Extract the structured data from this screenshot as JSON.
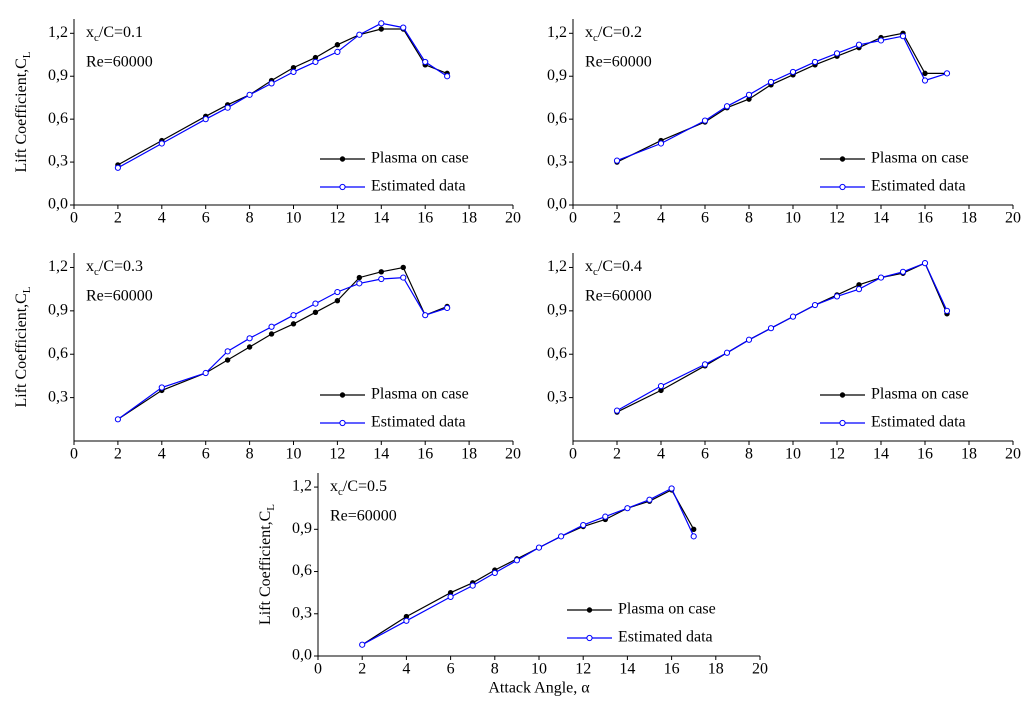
{
  "chart_data": [
    {
      "type": "line",
      "annotation": [
        "x",
        "c",
        "/C=0.1"
      ],
      "subtitle": "Re=60000",
      "ylabel": [
        "Lift Coefficient,C",
        "L"
      ],
      "x": [
        2,
        4,
        6,
        7,
        8,
        9,
        10,
        11,
        12,
        13,
        14,
        15,
        16,
        17
      ],
      "series": [
        {
          "name": "Plasma on case",
          "color": "#000000",
          "marker": "filled",
          "values": [
            0.28,
            0.45,
            0.62,
            0.7,
            0.77,
            0.87,
            0.96,
            1.03,
            1.12,
            1.19,
            1.23,
            1.23,
            0.98,
            0.92
          ]
        },
        {
          "name": "Estimated data",
          "color": "#0000ff",
          "marker": "open",
          "values": [
            0.26,
            0.43,
            0.6,
            0.68,
            0.77,
            0.85,
            0.93,
            1.0,
            1.07,
            1.19,
            1.27,
            1.24,
            1.0,
            0.9
          ]
        }
      ],
      "xlim": [
        0,
        20
      ],
      "xticks": [
        0,
        2,
        4,
        6,
        8,
        10,
        12,
        14,
        16,
        18,
        20
      ],
      "ylim": [
        0,
        1.3
      ],
      "yticks": [
        {
          "value": 0,
          "label": "0,0"
        },
        {
          "value": 0.3,
          "label": "0,3"
        },
        {
          "value": 0.6,
          "label": "0,6"
        },
        {
          "value": 0.9,
          "label": "0,9"
        },
        {
          "value": 1.2,
          "label": "1,2"
        }
      ],
      "legend": "lower right"
    },
    {
      "type": "line",
      "annotation": [
        "x",
        "c",
        "/C=0.2"
      ],
      "subtitle": "Re=60000",
      "x": [
        2,
        4,
        6,
        7,
        8,
        9,
        10,
        11,
        12,
        13,
        14,
        15,
        16,
        17
      ],
      "series": [
        {
          "name": "Plasma on case",
          "color": "#000000",
          "marker": "filled",
          "values": [
            0.3,
            0.45,
            0.58,
            0.68,
            0.74,
            0.84,
            0.91,
            0.98,
            1.04,
            1.1,
            1.17,
            1.2,
            0.92,
            0.92
          ]
        },
        {
          "name": "Estimated data",
          "color": "#0000ff",
          "marker": "open",
          "values": [
            0.31,
            0.43,
            0.59,
            0.69,
            0.77,
            0.86,
            0.93,
            1.0,
            1.06,
            1.12,
            1.15,
            1.18,
            0.87,
            0.92
          ]
        }
      ],
      "xlim": [
        0,
        20
      ],
      "xticks": [
        0,
        2,
        4,
        6,
        8,
        10,
        12,
        14,
        16,
        18,
        20
      ],
      "ylim": [
        0,
        1.3
      ],
      "yticks": [
        {
          "value": 0,
          "label": "0,0"
        },
        {
          "value": 0.3,
          "label": "0,3"
        },
        {
          "value": 0.6,
          "label": "0,6"
        },
        {
          "value": 0.9,
          "label": "0,9"
        },
        {
          "value": 1.2,
          "label": "1,2"
        }
      ],
      "legend": "lower right"
    },
    {
      "type": "line",
      "annotation": [
        "x",
        "c",
        "/C=0.3"
      ],
      "subtitle": "Re=60000",
      "ylabel": [
        "Lift Coefficient,C",
        "L"
      ],
      "x": [
        2,
        4,
        6,
        7,
        8,
        9,
        10,
        11,
        12,
        13,
        14,
        15,
        16,
        17
      ],
      "series": [
        {
          "name": "Plasma on case",
          "color": "#000000",
          "marker": "filled",
          "values": [
            0.15,
            0.35,
            0.47,
            0.56,
            0.65,
            0.74,
            0.81,
            0.89,
            0.97,
            1.13,
            1.17,
            1.2,
            0.87,
            0.93
          ]
        },
        {
          "name": "Estimated data",
          "color": "#0000ff",
          "marker": "open",
          "values": [
            0.15,
            0.37,
            0.47,
            0.62,
            0.71,
            0.79,
            0.87,
            0.95,
            1.03,
            1.09,
            1.12,
            1.13,
            0.87,
            0.92
          ]
        }
      ],
      "xlim": [
        0,
        20
      ],
      "xticks": [
        0,
        2,
        4,
        6,
        8,
        10,
        12,
        14,
        16,
        18,
        20
      ],
      "ylim": [
        0,
        1.3
      ],
      "yticks": [
        {
          "value": 0.3,
          "label": "0,3"
        },
        {
          "value": 0.6,
          "label": "0,6"
        },
        {
          "value": 0.9,
          "label": "0,9"
        },
        {
          "value": 1.2,
          "label": "1,2"
        }
      ],
      "legend": "lower right"
    },
    {
      "type": "line",
      "annotation": [
        "x",
        "c",
        "/C=0.4"
      ],
      "subtitle": "Re=60000",
      "x": [
        2,
        4,
        6,
        7,
        8,
        9,
        10,
        11,
        12,
        13,
        14,
        15,
        16,
        17
      ],
      "series": [
        {
          "name": "Plasma on case",
          "color": "#000000",
          "marker": "filled",
          "values": [
            0.2,
            0.35,
            0.52,
            0.61,
            0.7,
            0.78,
            0.86,
            0.94,
            1.01,
            1.08,
            1.13,
            1.16,
            1.23,
            0.88
          ]
        },
        {
          "name": "Estimated data",
          "color": "#0000ff",
          "marker": "open",
          "values": [
            0.21,
            0.38,
            0.53,
            0.61,
            0.7,
            0.78,
            0.86,
            0.94,
            1.0,
            1.05,
            1.13,
            1.17,
            1.23,
            0.9
          ]
        }
      ],
      "xlim": [
        0,
        20
      ],
      "xticks": [
        0,
        2,
        4,
        6,
        8,
        10,
        12,
        14,
        16,
        18,
        20
      ],
      "ylim": [
        0,
        1.3
      ],
      "yticks": [
        {
          "value": 0.3,
          "label": "0,3"
        },
        {
          "value": 0.6,
          "label": "0,6"
        },
        {
          "value": 0.9,
          "label": "0,9"
        },
        {
          "value": 1.2,
          "label": "1,2"
        }
      ],
      "legend": "lower right"
    },
    {
      "type": "line",
      "annotation": [
        "x",
        "c",
        "/C=0.5"
      ],
      "subtitle": "Re=60000",
      "ylabel": [
        "Lift Coefficient,C",
        "L"
      ],
      "xlabel": "Attack Angle, α",
      "x": [
        2,
        4,
        6,
        7,
        8,
        9,
        10,
        11,
        12,
        13,
        14,
        15,
        16,
        17
      ],
      "series": [
        {
          "name": "Plasma on case",
          "color": "#000000",
          "marker": "filled",
          "values": [
            0.08,
            0.28,
            0.45,
            0.52,
            0.61,
            0.69,
            0.77,
            0.85,
            0.92,
            0.97,
            1.05,
            1.1,
            1.18,
            0.9
          ]
        },
        {
          "name": "Estimated data",
          "color": "#0000ff",
          "marker": "open",
          "values": [
            0.08,
            0.25,
            0.42,
            0.5,
            0.59,
            0.68,
            0.77,
            0.85,
            0.93,
            0.99,
            1.05,
            1.11,
            1.19,
            0.85
          ]
        }
      ],
      "xlim": [
        0,
        20
      ],
      "xticks": [
        0,
        2,
        4,
        6,
        8,
        10,
        12,
        14,
        16,
        18,
        20
      ],
      "ylim": [
        0,
        1.3
      ],
      "yticks": [
        {
          "value": 0,
          "label": "0,0"
        },
        {
          "value": 0.3,
          "label": "0,3"
        },
        {
          "value": 0.6,
          "label": "0,6"
        },
        {
          "value": 0.9,
          "label": "0,9"
        },
        {
          "value": 1.2,
          "label": "1,2"
        }
      ],
      "legend": "lower right"
    }
  ]
}
